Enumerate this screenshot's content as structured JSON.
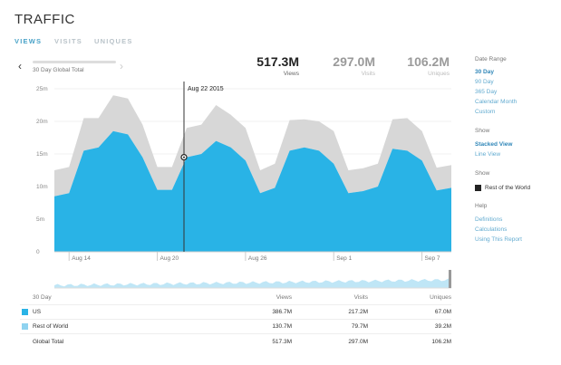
{
  "page": {
    "title": "TRAFFIC",
    "tabs": [
      "VIEWS",
      "VISITS",
      "UNIQUES"
    ],
    "active_tab": "VIEWS"
  },
  "range_nav": {
    "label": "30 Day Global Total",
    "prev_icon": "‹",
    "next_icon": "›"
  },
  "stats": [
    {
      "value": "517.3M",
      "label": "Views"
    },
    {
      "value": "297.0M",
      "label": "Visits"
    },
    {
      "value": "106.2M",
      "label": "Uniques"
    }
  ],
  "sidebar": {
    "date_range": {
      "heading": "Date Range",
      "options": [
        "30 Day",
        "90 Day",
        "365 Day",
        "Calendar Month",
        "Custom"
      ],
      "selected": "30 Day"
    },
    "show_view": {
      "heading": "Show",
      "options": [
        "Stacked View",
        "Line View"
      ],
      "selected": "Stacked View"
    },
    "show_series": {
      "heading": "Show",
      "item": "Rest of the World"
    },
    "help": {
      "heading": "Help",
      "links": [
        "Definitions",
        "Calculations",
        "Using This Report"
      ]
    }
  },
  "chart_data": {
    "type": "area",
    "stacked": true,
    "title": "",
    "xlabel": "",
    "ylabel": "",
    "ylim": [
      0,
      25
    ],
    "yticks": [
      "0",
      "5m",
      "10m",
      "15m",
      "20m",
      "25m"
    ],
    "xticks": [
      "Aug 14",
      "Aug 20",
      "Aug 26",
      "Sep 1",
      "Sep 7"
    ],
    "hover_label": "Aug 22 2015",
    "series": [
      {
        "name": "US",
        "color": "#29b3e6",
        "values": [
          8.5,
          9,
          15.5,
          16,
          18.5,
          18,
          14.5,
          9.5,
          9.5,
          14.5,
          15,
          17,
          16,
          14,
          9,
          9.8,
          15.5,
          16,
          15.5,
          13.5,
          9,
          9.3,
          10,
          15.8,
          15.5,
          14,
          9.4,
          9.8
        ]
      },
      {
        "name": "Rest of World",
        "color": "#d7d7d7",
        "values": [
          4,
          4,
          5,
          4.5,
          5.5,
          5.5,
          5,
          3.5,
          3.5,
          4.5,
          4.5,
          5.5,
          5,
          5,
          3.5,
          3.7,
          4.7,
          4.3,
          4.5,
          5,
          3.5,
          3.5,
          3.5,
          4.5,
          5,
          4.5,
          3.5,
          3.5
        ]
      }
    ]
  },
  "table": {
    "headers": [
      "30 Day",
      "Views",
      "Visits",
      "Uniques"
    ],
    "rows": [
      {
        "name": "US",
        "views": "386.7M",
        "visits": "217.2M",
        "uniques": "67.0M",
        "color": "#29b3e6"
      },
      {
        "name": "Rest of World",
        "views": "130.7M",
        "visits": "79.7M",
        "uniques": "39.2M",
        "color": "#8fd3f0"
      },
      {
        "name": "Global Total",
        "views": "517.3M",
        "visits": "297.0M",
        "uniques": "106.2M",
        "color": ""
      }
    ]
  }
}
